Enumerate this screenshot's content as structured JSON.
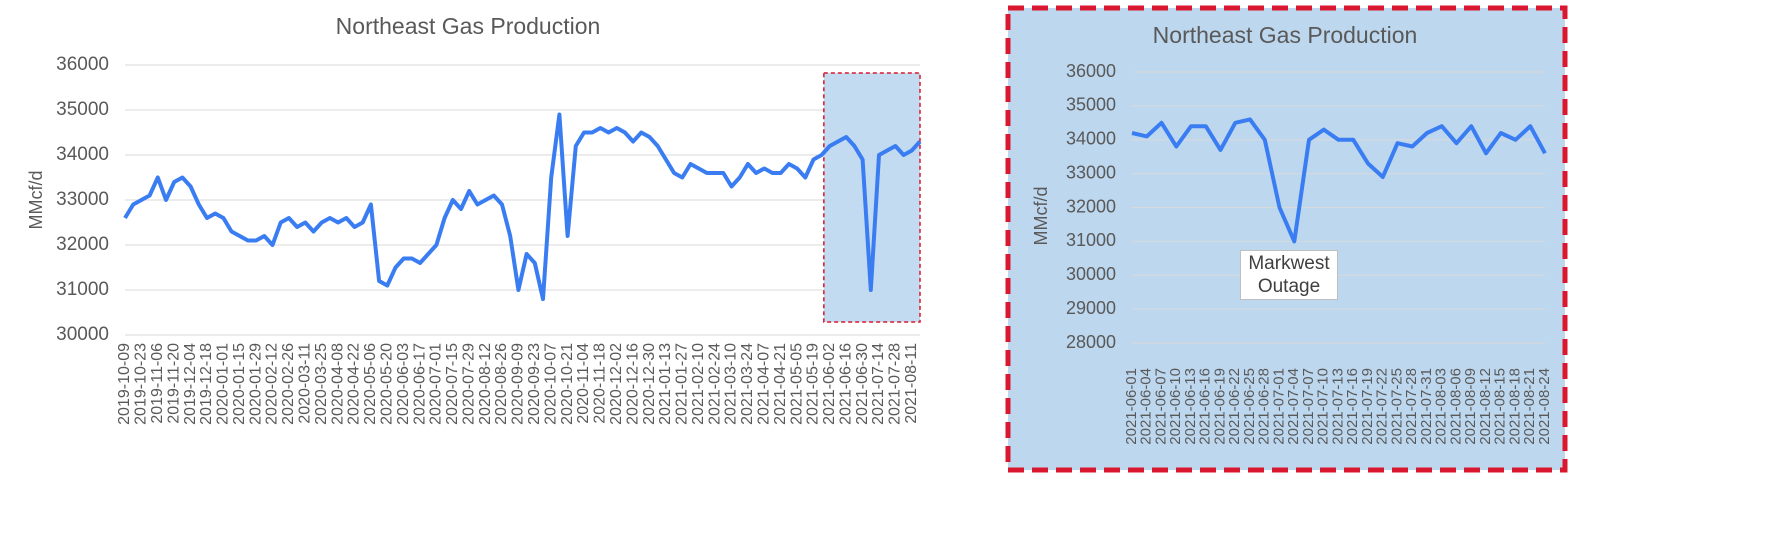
{
  "chart_data": [
    {
      "type": "line",
      "title": "Northeast Gas Production",
      "y_label": "MMcf/d",
      "categories": [
        "2019-10-09",
        null,
        "2019-10-23",
        null,
        "2019-11-06",
        null,
        "2019-11-20",
        null,
        "2019-12-04",
        null,
        "2019-12-18",
        null,
        "2020-01-01",
        null,
        "2020-01-15",
        null,
        "2020-01-29",
        null,
        "2020-02-12",
        null,
        "2020-02-26",
        null,
        "2020-03-11",
        null,
        "2020-03-25",
        null,
        "2020-04-08",
        null,
        "2020-04-22",
        null,
        "2020-05-06",
        null,
        "2020-05-20",
        null,
        "2020-06-03",
        null,
        "2020-06-17",
        null,
        "2020-07-01",
        null,
        "2020-07-15",
        null,
        "2020-07-29",
        null,
        "2020-08-12",
        null,
        "2020-08-26",
        null,
        "2020-09-09",
        null,
        "2020-09-23",
        null,
        "2020-10-07",
        null,
        "2020-10-21",
        null,
        "2020-11-04",
        null,
        "2020-11-18",
        null,
        "2020-12-02",
        null,
        "2020-12-16",
        null,
        "2020-12-30",
        null,
        "2021-01-13",
        null,
        "2021-01-27",
        null,
        "2021-02-10",
        null,
        "2021-02-24",
        null,
        "2021-03-10",
        null,
        "2021-03-24",
        null,
        "2021-04-07",
        null,
        "2021-04-21",
        null,
        "2021-05-05",
        null,
        "2021-05-19",
        null,
        "2021-06-02",
        null,
        "2021-06-16",
        null,
        "2021-06-30",
        null,
        "2021-07-14",
        null,
        "2021-07-28",
        null,
        "2021-08-11",
        null
      ],
      "series": [
        {
          "name": "Northeast Gas Production",
          "color": "#3a7df2",
          "values": [
            32600,
            32900,
            33000,
            33100,
            33500,
            33000,
            33400,
            33500,
            33300,
            32900,
            32600,
            32700,
            32600,
            32300,
            32200,
            32100,
            32100,
            32200,
            32000,
            32500,
            32600,
            32400,
            32500,
            32300,
            32500,
            32600,
            32500,
            32600,
            32400,
            32500,
            32900,
            31200,
            31100,
            31500,
            31700,
            31700,
            31600,
            31800,
            32000,
            32600,
            33000,
            32800,
            33200,
            32900,
            33000,
            33100,
            32900,
            32200,
            31000,
            31800,
            31600,
            30800,
            33500,
            34900,
            32200,
            34200,
            34500,
            34500,
            34600,
            34500,
            34600,
            34500,
            34300,
            34500,
            34400,
            34200,
            33900,
            33600,
            33500,
            33800,
            33700,
            33600,
            33600,
            33600,
            33300,
            33500,
            33800,
            33600,
            33700,
            33600,
            33600,
            33800,
            33700,
            33500,
            33900,
            34000,
            34200,
            34300,
            34400,
            34200,
            33900,
            31000,
            34000,
            34100,
            34200,
            34000,
            34100,
            34300
          ]
        }
      ],
      "ylim": [
        30000,
        36000
      ],
      "yticks": [
        30000,
        31000,
        32000,
        33000,
        34000,
        35000,
        36000
      ],
      "grid": true
    },
    {
      "type": "line",
      "title": "Northeast Gas Production",
      "y_label": "MMcf/d",
      "categories": [
        "2021-06-01",
        "2021-06-04",
        "2021-06-07",
        "2021-06-10",
        "2021-06-13",
        "2021-06-16",
        "2021-06-19",
        "2021-06-22",
        "2021-06-25",
        "2021-06-28",
        "2021-07-01",
        "2021-07-04",
        "2021-07-07",
        "2021-07-10",
        "2021-07-13",
        "2021-07-16",
        "2021-07-19",
        "2021-07-22",
        "2021-07-25",
        "2021-07-28",
        "2021-07-31",
        "2021-08-03",
        "2021-08-06",
        "2021-08-09",
        "2021-08-12",
        "2021-08-15",
        "2021-08-18",
        "2021-08-21",
        "2021-08-24"
      ],
      "series": [
        {
          "name": "Northeast Gas Production",
          "color": "#3a7df2",
          "values": [
            34200,
            34100,
            34500,
            33800,
            34400,
            34400,
            33700,
            34500,
            34600,
            34000,
            32000,
            31000,
            34000,
            34300,
            34000,
            34000,
            33300,
            32900,
            33900,
            33800,
            34200,
            34400,
            33900,
            34400,
            33600,
            34200,
            34000,
            34400,
            33600
          ]
        }
      ],
      "ylim": [
        27500,
        36000
      ],
      "yticks": [
        28000,
        29000,
        30000,
        31000,
        32000,
        33000,
        34000,
        35000,
        36000
      ],
      "grid": true,
      "annotation": "Markwest Outage"
    }
  ]
}
